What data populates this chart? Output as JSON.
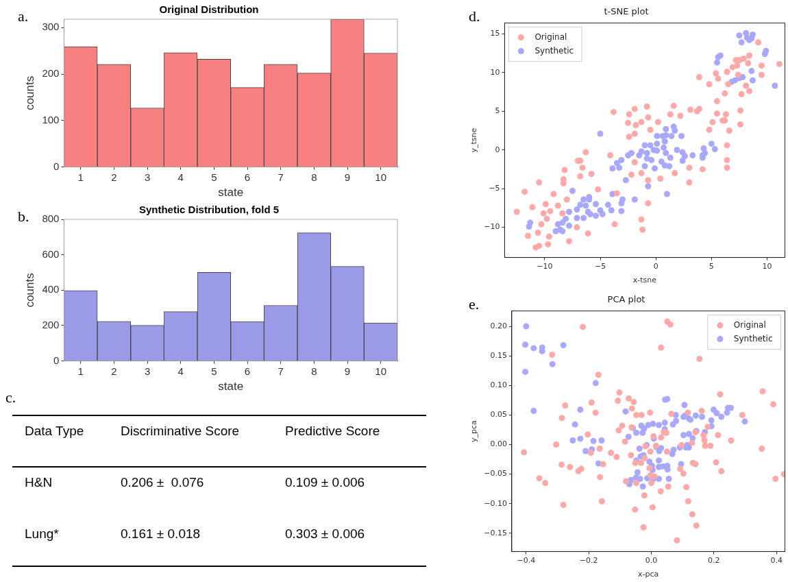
{
  "chart_data": [
    {
      "type": "bar",
      "title": "Original Distribution",
      "xlabel": "state",
      "ylabel": "counts",
      "annotations": [
        "a."
      ],
      "categories": [
        "1",
        "2",
        "3",
        "4",
        "5",
        "6",
        "7",
        "8",
        "9",
        "10"
      ],
      "values": [
        259,
        221,
        127,
        246,
        232,
        171,
        221,
        202,
        318,
        245
      ],
      "color": "#f88080",
      "ylim": [
        0,
        318
      ],
      "yticks": [
        0,
        100,
        200,
        300
      ]
    },
    {
      "type": "bar",
      "title": "Synthetic Distribution, fold 5",
      "xlabel": "state",
      "ylabel": "counts",
      "annotations": [
        "b."
      ],
      "categories": [
        "1",
        "2",
        "3",
        "4",
        "5",
        "6",
        "7",
        "8",
        "9",
        "10"
      ],
      "values": [
        398,
        224,
        201,
        279,
        501,
        223,
        314,
        724,
        534,
        215
      ],
      "color": "#9a9ae6",
      "ylim": [
        0,
        800
      ],
      "yticks": [
        0,
        200,
        400,
        600,
        800
      ]
    },
    {
      "type": "other",
      "annotations": [
        "c.",
        "Data Type",
        "Discriminative Score",
        "Predictive Score",
        "H&N",
        "0.206 ±  0.076",
        "0.109 ± 0.006",
        "Lung*",
        "0.161 ± 0.018",
        "0.303 ± 0.006"
      ]
    },
    {
      "type": "scatter",
      "title": "t-SNE plot",
      "xlabel": "x-tsne",
      "ylabel": "y_tsne",
      "annotations": [
        "d."
      ],
      "legend": "top left",
      "marker": "circle",
      "xlim": [
        -13.6,
        11.6
      ],
      "ylim": [
        -13.9,
        16.4
      ],
      "xticks": [
        {
          "value": -10,
          "label": "−10"
        },
        {
          "value": -5,
          "label": "−5"
        },
        0,
        5,
        10
      ],
      "yticks": [
        {
          "value": -10,
          "label": "−10"
        },
        {
          "value": -5,
          "label": "−5"
        },
        0,
        5,
        10,
        15
      ],
      "series": [
        {
          "name": "Original",
          "color": "#ffa8a8",
          "x": [
            -12.5,
            -11.8,
            -11.1,
            -10.5,
            -9.9,
            -10.1,
            -9.5,
            -9.8,
            -10.3,
            -10.6,
            -11.5,
            -10.8,
            -10.5,
            -9.6,
            -9.7,
            -9.2,
            -8.8,
            -8.4,
            -8.3,
            -8.3,
            -8.2,
            -8.0,
            -7.8,
            -7.1,
            -7.0,
            -6.8,
            -6.8,
            -6.6,
            -6.3,
            -6.1,
            -5.8,
            -5.2,
            -4.1,
            -3.8,
            -3.5,
            -3.7,
            -2.5,
            -2.4,
            -2.4,
            -1.9,
            -1.8,
            -1.9,
            -1.9,
            -2.2,
            -1.3,
            -0.8,
            -0.7,
            -0.5,
            0.2,
            -1.3,
            -0.7,
            -0.7,
            -1.3,
            -1.2,
            0.4,
            1.6,
            1.3,
            2.2,
            1.7,
            3.0,
            3.0,
            3.1,
            3.7,
            3.9,
            3.9,
            4.2,
            4.8,
            4.8,
            5.1,
            5.5,
            5.5,
            5.4,
            5.6,
            6.0,
            6.2,
            6.3,
            6.2,
            6.4,
            6.5,
            6.6,
            6.4,
            6.4,
            6.4,
            6.9,
            7.2,
            7.5,
            7.3,
            7.4,
            7.6,
            7.6,
            7.7,
            7.9,
            8.1,
            8.3,
            8.4,
            8.4,
            9.2,
            9.5,
            9.5,
            11.1
          ],
          "values": [
            -8.0,
            -5.4,
            -7.4,
            -4.2,
            -7.0,
            -8.2,
            -7.9,
            -8.9,
            -9.6,
            -10.7,
            -11.1,
            -12.6,
            -12.4,
            -11.2,
            -12.2,
            -5.7,
            -7.2,
            -8.2,
            -3.8,
            -4.3,
            -2.6,
            -6.4,
            -11.8,
            -10.0,
            -1.4,
            -1.4,
            -3.4,
            -2.3,
            -0.3,
            -10.8,
            -3.1,
            -5.1,
            -0.7,
            4.9,
            -5.6,
            -9.6,
            3.5,
            4.6,
            1.7,
            5.3,
            3.2,
            2.1,
            -1.6,
            -3.2,
            3.6,
            5.6,
            4.2,
            2.6,
            3.6,
            -3.0,
            -3.9,
            -6.9,
            -9.0,
            -10.3,
            -3.7,
            5.7,
            4.6,
            4.4,
            -3.0,
            -2.3,
            -4.2,
            5.2,
            5.0,
            5.3,
            9.4,
            -2.5,
            8.5,
            2.6,
            3.6,
            4.7,
            6.3,
            9.9,
            9.2,
            3.8,
            3.8,
            4.6,
            7.3,
            10.1,
            8.5,
            2.5,
            0.6,
            -1.3,
            -2.3,
            10.7,
            11.6,
            11.6,
            10.9,
            9.7,
            5.1,
            3.3,
            7.2,
            11.8,
            8.3,
            11.2,
            12.2,
            7.6,
            13.9,
            10.9,
            9.7,
            11.1
          ]
        },
        {
          "name": "Synthetic",
          "color": "#a8a8ff",
          "x": [
            -11.3,
            -11.4,
            -9.0,
            -8.8,
            -8.6,
            -8.4,
            -8.4,
            -8.1,
            -7.8,
            -7.8,
            -7.5,
            -7.1,
            -7.1,
            -6.8,
            -6.5,
            -6.5,
            -6.3,
            -6.1,
            -6.0,
            -6.0,
            -5.9,
            -5.4,
            -5.4,
            -5.0,
            -4.8,
            -5.0,
            -4.3,
            -4.0,
            -3.9,
            -3.9,
            -3.5,
            -3.3,
            -3.1,
            -3.0,
            -3.1,
            -3.1,
            -2.7,
            -2.5,
            -2.2,
            -1.9,
            -1.5,
            -1.3,
            -1.0,
            -1.0,
            -0.8,
            -0.8,
            -0.5,
            -0.4,
            -0.7,
            -0.2,
            -0.1,
            0.1,
            0.1,
            0.1,
            0.5,
            0.6,
            0.7,
            0.8,
            0.8,
            0.9,
            0.9,
            0.9,
            1.0,
            1.2,
            1.3,
            1.4,
            1.6,
            1.7,
            1.9,
            2.3,
            2.4,
            2.6,
            2.4,
            3.3,
            4.2,
            4.2,
            4.4,
            4.3,
            5.0,
            5.3,
            5.5,
            5.6,
            5.8,
            6.8,
            7.1,
            7.5,
            7.8,
            7.5,
            7.7,
            8.1,
            8.2,
            8.4,
            8.6,
            8.7,
            8.6,
            8.7,
            9.9,
            9.8,
            10.7
          ],
          "values": [
            -9.4,
            -9.9,
            -10.5,
            -9.6,
            -10.3,
            -10.5,
            -9.4,
            -8.9,
            -8.0,
            -9.8,
            -5.3,
            -8.8,
            -7.7,
            -7.1,
            -6.4,
            -8.8,
            -7.2,
            -8.0,
            -6.1,
            -6.4,
            -8.3,
            -7.0,
            -8.5,
            -7.8,
            -8.3,
            2.1,
            -7.1,
            -7.8,
            -5.7,
            -2.4,
            -1.7,
            -2.3,
            -1.3,
            -6.4,
            -6.9,
            -7.9,
            -3.9,
            -0.7,
            -0.4,
            -6.4,
            -0.7,
            -0.2,
            -2.1,
            0.6,
            -0.4,
            -1.1,
            0.6,
            -1.3,
            -4.7,
            0.0,
            -2.4,
            1.8,
            0.8,
            -0.1,
            -1.5,
            1.8,
            0.3,
            1.1,
            -2.0,
            -0.4,
            2.7,
            1.9,
            -5.7,
            -2.1,
            -1.0,
            1.8,
            3.0,
            2.5,
            0.0,
            1.8,
            -0.3,
            -0.8,
            -1.4,
            -0.7,
            -0.7,
            -1.0,
            -0.4,
            0.2,
            0.8,
            0.1,
            11.3,
            12.0,
            12.2,
            8.8,
            9.0,
            9.3,
            9.4,
            14.8,
            13.9,
            15.1,
            14.5,
            14.2,
            14.4,
            14.9,
            10.2,
            9.0,
            12.8,
            12.4,
            8.3
          ]
        }
      ]
    },
    {
      "type": "scatter",
      "title": "PCA plot",
      "xlabel": "x-pca",
      "ylabel": "y_pca",
      "annotations": [
        "e."
      ],
      "legend": "top right",
      "marker": "circle",
      "xlim": [
        -0.446,
        0.427
      ],
      "ylim": [
        -0.181,
        0.226
      ],
      "xticks": [
        {
          "value": -0.4,
          "label": "−0.4"
        },
        {
          "value": -0.2,
          "label": "−0.2"
        },
        {
          "value": 0,
          "label": "0.0"
        },
        0.2,
        0.4
      ],
      "yticks": [
        {
          "value": -0.15,
          "label": "−0.15"
        },
        {
          "value": -0.1,
          "label": "−0.10"
        },
        {
          "value": -0.05,
          "label": "−0.05"
        },
        {
          "value": 0,
          "label": "0.00"
        },
        0.05,
        {
          "value": 0.1,
          "label": "0.10"
        },
        0.15,
        {
          "value": 0.2,
          "label": "0.20"
        }
      ],
      "series": [
        {
          "name": "Original",
          "color": "#ffa8a8",
          "x": [
            -0.407,
            -0.358,
            -0.339,
            -0.317,
            -0.304,
            -0.286,
            -0.287,
            -0.281,
            -0.275,
            -0.26,
            -0.233,
            -0.224,
            -0.219,
            -0.203,
            -0.193,
            -0.191,
            -0.178,
            -0.169,
            -0.165,
            -0.164,
            -0.158,
            -0.154,
            -0.129,
            -0.111,
            -0.107,
            -0.104,
            -0.102,
            -0.093,
            -0.084,
            -0.081,
            -0.072,
            -0.065,
            -0.063,
            -0.062,
            -0.056,
            -0.052,
            -0.051,
            -0.048,
            -0.048,
            -0.031,
            -0.033,
            -0.025,
            -0.022,
            -0.021,
            -0.019,
            -0.004,
            -0.003,
            -0.006,
            -0.003,
            0.0,
            0.004,
            0.007,
            0.01,
            0.015,
            0.03,
            0.031,
            0.031,
            0.04,
            0.048,
            0.05,
            0.051,
            0.054,
            0.061,
            0.064,
            0.082,
            0.092,
            0.097,
            0.103,
            0.112,
            0.117,
            0.118,
            0.13,
            0.131,
            0.133,
            0.141,
            0.141,
            0.144,
            0.154,
            0.161,
            0.167,
            0.17,
            0.172,
            0.18,
            0.189,
            0.207,
            0.213,
            0.22,
            0.224,
            0.255,
            0.291,
            0.353,
            0.356,
            0.39,
            0.397,
            0.424
          ],
          "values": [
            -0.013,
            -0.057,
            -0.065,
            0.152,
            0.0,
            0.045,
            -0.034,
            -0.102,
            0.066,
            -0.038,
            -0.045,
            -0.041,
            0.199,
            0.017,
            -0.014,
            0.071,
            0.054,
            0.118,
            -0.007,
            -0.055,
            -0.096,
            -0.033,
            -0.014,
            -0.021,
            0.074,
            0.024,
            0.088,
            0.032,
            0.005,
            -0.062,
            0.078,
            -0.018,
            0.029,
            0.061,
            0.072,
            -0.11,
            -0.031,
            0.05,
            -0.065,
            0.05,
            -0.031,
            -0.14,
            -0.086,
            -0.023,
            -0.003,
            0.054,
            -0.012,
            -0.04,
            -0.052,
            -0.065,
            -0.106,
            0.014,
            -0.054,
            -0.002,
            -0.079,
            0.012,
            0.164,
            0.021,
            0.02,
            -0.012,
            0.208,
            -0.071,
            0.203,
            0.052,
            -0.162,
            -0.041,
            -0.001,
            -0.049,
            -0.072,
            0.054,
            -0.096,
            0.003,
            -0.118,
            -0.031,
            -0.033,
            0.021,
            -0.137,
            0.145,
            0.057,
            0.016,
            0.007,
            -0.002,
            0.03,
            -0.002,
            -0.03,
            0.016,
            0.085,
            -0.045,
            0.007,
            0.05,
            -0.007,
            0.09,
            0.068,
            -0.058,
            -0.05
          ]
        },
        {
          "name": "Synthetic",
          "color": "#a8a8ff",
          "x": [
            -0.4,
            -0.403,
            -0.403,
            -0.376,
            -0.349,
            -0.349,
            -0.376,
            -0.316,
            -0.281,
            -0.244,
            -0.251,
            -0.227,
            -0.227,
            -0.21,
            -0.19,
            -0.185,
            -0.178,
            -0.169,
            -0.159,
            -0.082,
            -0.073,
            -0.07,
            -0.065,
            -0.059,
            -0.048,
            -0.048,
            -0.044,
            -0.049,
            -0.038,
            -0.036,
            -0.034,
            -0.032,
            -0.028,
            -0.027,
            -0.025,
            -0.023,
            -0.015,
            -0.013,
            -0.01,
            -0.006,
            0.002,
            0.004,
            0.005,
            0.007,
            0.008,
            0.016,
            0.024,
            0.024,
            0.024,
            0.024,
            0.025,
            0.031,
            0.037,
            0.043,
            0.043,
            0.044,
            0.051,
            0.051,
            0.052,
            0.056,
            0.067,
            0.069,
            0.071,
            0.078,
            0.079,
            0.091,
            0.095,
            0.103,
            0.103,
            0.106,
            0.108,
            0.111,
            0.115,
            0.12,
            0.12,
            0.12,
            0.125,
            0.132,
            0.142,
            0.144,
            0.162,
            0.171,
            0.192,
            0.192,
            0.199,
            0.209,
            0.224,
            0.242,
            0.245,
            0.254,
            0.299
          ],
          "values": [
            0.2,
            0.169,
            0.123,
            0.163,
            0.164,
            0.158,
            0.057,
            0.136,
            0.168,
            0.034,
            0.007,
            0.059,
            0.01,
            -0.011,
            -0.008,
            0.006,
            0.104,
            -0.032,
            0.007,
            0.056,
            0.013,
            -0.067,
            -0.06,
            0.028,
            0.02,
            -0.027,
            -0.047,
            -0.056,
            -0.007,
            -0.058,
            -0.02,
            0.032,
            0.02,
            -0.071,
            -0.018,
            0.027,
            -0.001,
            -0.057,
            0.033,
            -0.029,
            -0.036,
            -0.043,
            0.035,
            -0.058,
            0.01,
            -0.004,
            0.033,
            -0.027,
            -0.038,
            -0.058,
            -0.011,
            -0.006,
            -0.037,
            0.037,
            0.026,
            0.076,
            0.077,
            -0.036,
            -0.042,
            -0.058,
            -0.016,
            0.034,
            -0.009,
            0.05,
            0.04,
            -0.005,
            -0.033,
            0.047,
            0.016,
            0.067,
            0.049,
            -0.005,
            -0.001,
            0.018,
            -0.005,
            0.044,
            0.042,
            0.011,
            0.049,
            0.023,
            0.047,
            0.021,
            0.041,
            0.031,
            0.059,
            0.053,
            0.047,
            0.054,
            0.062,
            0.062,
            0.039
          ]
        }
      ]
    }
  ]
}
